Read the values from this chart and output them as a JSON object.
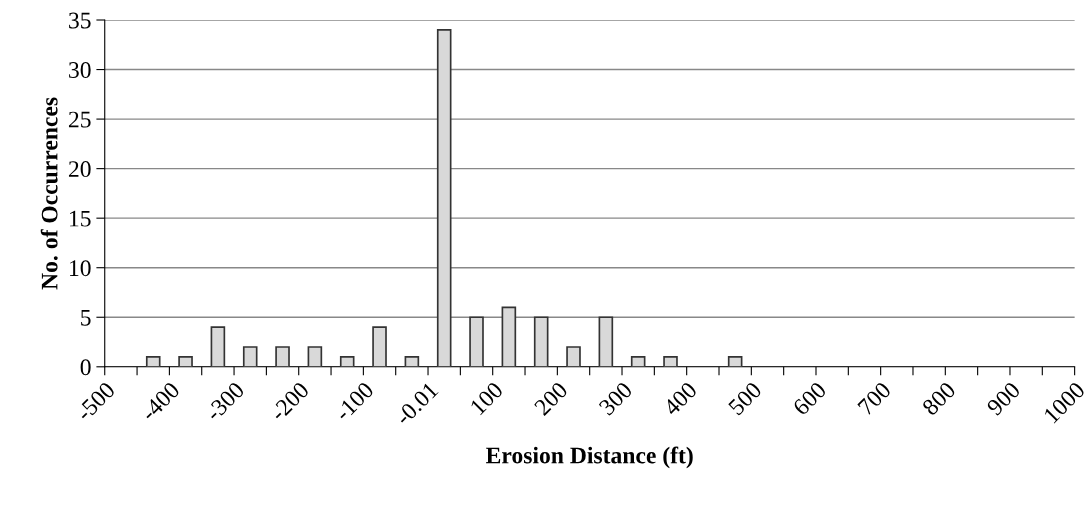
{
  "chart_data": {
    "type": "histogram",
    "xlabel": "Erosion Distance (ft)",
    "ylabel": "No. of Occurrences",
    "bins": [
      -500,
      -450,
      -400,
      -350,
      -300,
      -250,
      -200,
      -150,
      -100,
      -50,
      0,
      50,
      100,
      150,
      200,
      250,
      300,
      350,
      400,
      450,
      500,
      550,
      600,
      650,
      700,
      750,
      800,
      850,
      900,
      950,
      1000
    ],
    "values": [
      0,
      1,
      1,
      4,
      2,
      2,
      2,
      1,
      4,
      1,
      34,
      5,
      6,
      5,
      2,
      5,
      1,
      1,
      0,
      1,
      0,
      0,
      0,
      0,
      0,
      0,
      0,
      0,
      0,
      0
    ],
    "color": "#d9d9d9",
    "xlim": [
      -500,
      1000
    ],
    "xticks": [
      -500,
      {
        "value": -450,
        "label": null
      },
      -400,
      {
        "value": -350,
        "label": null
      },
      -300,
      {
        "value": -250,
        "label": null
      },
      -200,
      {
        "value": -150,
        "label": null
      },
      -100,
      {
        "value": -50,
        "label": null
      },
      -0.01,
      {
        "value": 50,
        "label": null
      },
      100,
      {
        "value": 150,
        "label": null
      },
      200,
      {
        "value": 250,
        "label": null
      },
      300,
      {
        "value": 350,
        "label": null
      },
      400,
      {
        "value": 450,
        "label": null
      },
      500,
      {
        "value": 550,
        "label": null
      },
      600,
      {
        "value": 650,
        "label": null
      },
      700,
      {
        "value": 750,
        "label": null
      },
      800,
      {
        "value": 850,
        "label": null
      },
      900,
      {
        "value": 950,
        "label": null
      },
      1000
    ],
    "ylim": [
      0,
      35
    ],
    "yticks": [
      0,
      5,
      10,
      15,
      20,
      25,
      30,
      35
    ],
    "grid": "y",
    "legend": false
  }
}
